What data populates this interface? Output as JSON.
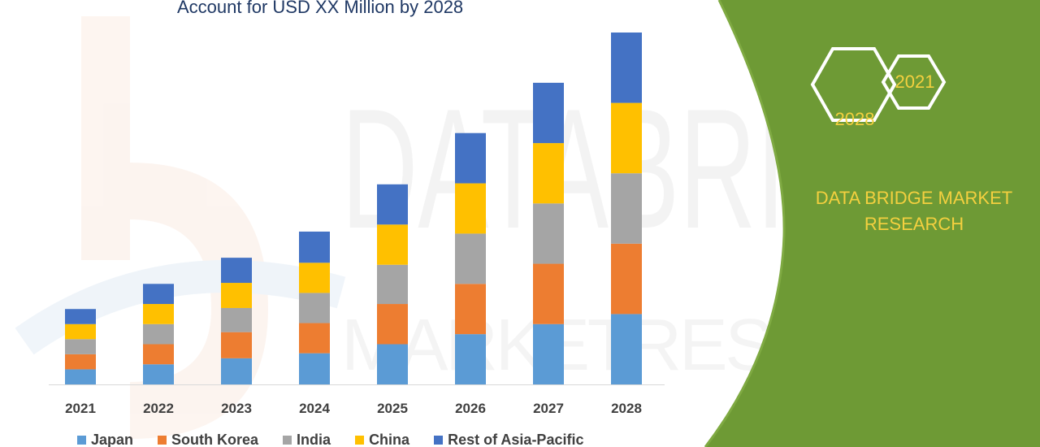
{
  "header": {
    "title": "Account for USD XX Million by 2028"
  },
  "brand": {
    "name": "DATA BRIDGE MARKET RESEARCH",
    "name_line1": "DATA BRIDGE MARKET",
    "name_line2": "RESEARCH",
    "hex_year_start": "2021",
    "hex_year_end": "2028",
    "watermark": "DATA BRIDGE MARKET RESEARCH",
    "colors": {
      "panel_green": "#6e9a35",
      "accent_yellow": "#f4d03f",
      "title_navy": "#1f3864"
    }
  },
  "chart_data": {
    "type": "bar",
    "stacked": true,
    "title": "Account for USD XX Million by 2028",
    "xlabel": "",
    "ylabel": "",
    "grid": false,
    "legend_position": "bottom",
    "categories": [
      "2021",
      "2022",
      "2023",
      "2024",
      "2025",
      "2026",
      "2027",
      "2028"
    ],
    "series": [
      {
        "name": "Japan",
        "color": "#5b9bd5",
        "values": [
          15,
          20,
          26,
          31,
          40,
          50,
          60,
          70
        ]
      },
      {
        "name": "South Korea",
        "color": "#ed7d31",
        "values": [
          15,
          20,
          26,
          30,
          40,
          50,
          60,
          70
        ]
      },
      {
        "name": "India",
        "color": "#a5a5a5",
        "values": [
          15,
          20,
          24,
          30,
          39,
          50,
          60,
          70
        ]
      },
      {
        "name": "China",
        "color": "#ffc000",
        "values": [
          15,
          20,
          25,
          30,
          40,
          50,
          60,
          70
        ]
      },
      {
        "name": "Rest of Asia-Pacific",
        "color": "#4472c4",
        "values": [
          15,
          20,
          25,
          31,
          40,
          50,
          60,
          70
        ]
      }
    ],
    "ylim": [
      0,
      350
    ]
  }
}
